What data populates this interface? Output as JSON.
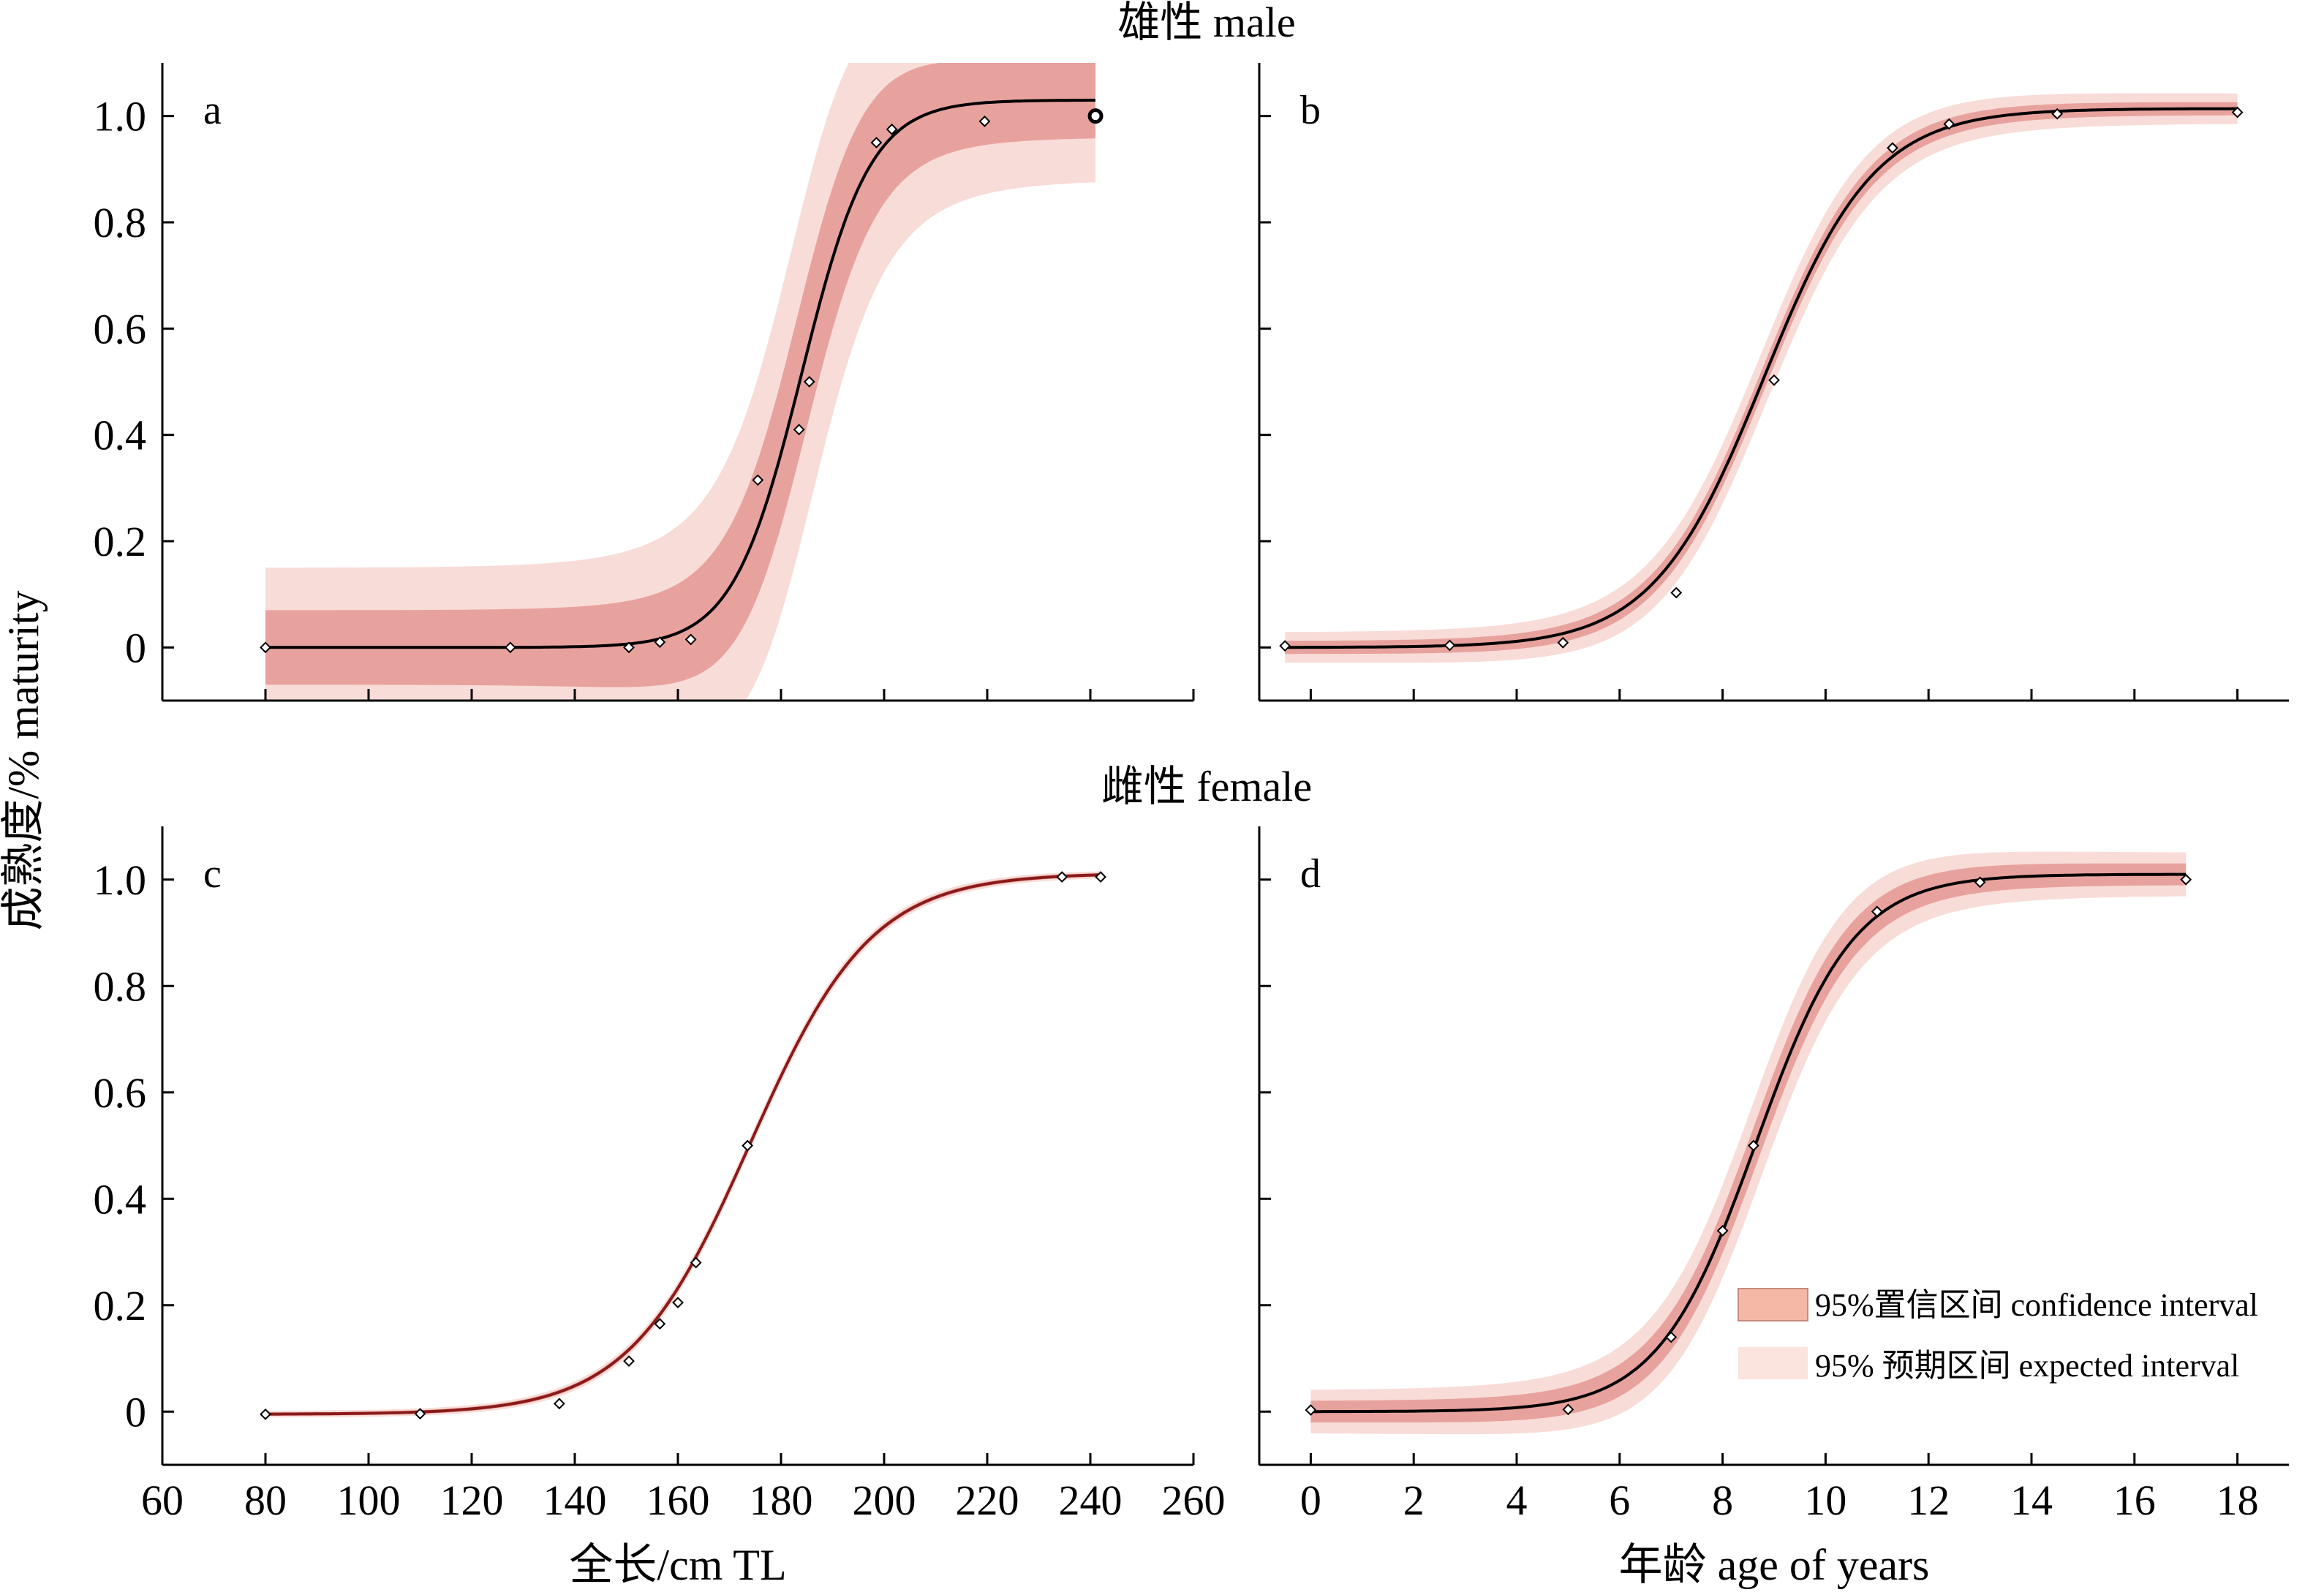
{
  "figure": {
    "section_male": "雄性 male",
    "section_female": "雌性 female",
    "ylabel": "成熟度/% maturity",
    "legend": [
      {
        "label": "95%置信区间 confidence interval",
        "color": "#f3b8a6",
        "border": "#c78a7a"
      },
      {
        "label": "95% 预期区间 expected interval",
        "color": "#fbe3de",
        "border": "#fbe3de"
      }
    ],
    "colors": {
      "ci": "#e8a29e",
      "pi": "#f8dcd8",
      "curve": "#000000",
      "curve_female_length": "#8b1a1a"
    }
  },
  "chart_data": [
    {
      "panel": "a",
      "type": "line",
      "sex": "male",
      "xlabel": "",
      "ylabel": "成熟度/% maturity",
      "xlim": [
        60,
        260
      ],
      "ylim": [
        -0.1,
        1.1
      ],
      "xticks": [
        60,
        80,
        100,
        120,
        140,
        160,
        180,
        200,
        220,
        240,
        260
      ],
      "yticks": [
        0,
        0.2,
        0.4,
        0.6,
        0.8,
        1.0
      ],
      "ytick_labels": [
        "0",
        "0.2",
        "0.4",
        "0.6",
        "0.8",
        "1.0"
      ],
      "show_xtick_labels": false,
      "curve": {
        "x_range": [
          80,
          241
        ],
        "x50": 184,
        "k": 0.15,
        "upper": 1.03
      },
      "ci_halfwidth": [
        0.07,
        0.07
      ],
      "pi_halfwidth": [
        0.15,
        0.16
      ],
      "points": [
        {
          "x": 80,
          "y": 0.0
        },
        {
          "x": 127.5,
          "y": 0.0
        },
        {
          "x": 150.5,
          "y": 0.0
        },
        {
          "x": 156.5,
          "y": 0.01
        },
        {
          "x": 162.5,
          "y": 0.015
        },
        {
          "x": 175.5,
          "y": 0.315
        },
        {
          "x": 183.5,
          "y": 0.41
        },
        {
          "x": 185.5,
          "y": 0.5
        },
        {
          "x": 198.5,
          "y": 0.95
        },
        {
          "x": 201.5,
          "y": 0.975
        },
        {
          "x": 219.5,
          "y": 0.99
        },
        {
          "x": 241,
          "y": 1.0
        }
      ]
    },
    {
      "panel": "b",
      "type": "line",
      "sex": "male",
      "xlabel": "",
      "ylabel": "",
      "xlim": [
        -1,
        19
      ],
      "ylim": [
        -0.1,
        1.1
      ],
      "xticks": [
        0,
        2,
        4,
        6,
        8,
        10,
        12,
        14,
        16,
        18
      ],
      "yticks": [
        0,
        0.2,
        0.4,
        0.6,
        0.8,
        1.0
      ],
      "show_xtick_labels": false,
      "curve": {
        "x_range": [
          -0.5,
          18
        ],
        "x50": 8.8,
        "k": 0.93,
        "upper": 1.014
      },
      "ci_halfwidth": [
        0.012,
        0.012
      ],
      "pi_halfwidth": [
        0.028,
        0.03
      ],
      "points": [
        {
          "x": -0.5,
          "y": 0.003
        },
        {
          "x": 2.7,
          "y": 0.004
        },
        {
          "x": 4.9,
          "y": 0.009
        },
        {
          "x": 7.1,
          "y": 0.103
        },
        {
          "x": 9.0,
          "y": 0.503
        },
        {
          "x": 11.3,
          "y": 0.94
        },
        {
          "x": 12.4,
          "y": 0.985
        },
        {
          "x": 14.5,
          "y": 1.004
        },
        {
          "x": 18.0,
          "y": 1.007
        }
      ]
    },
    {
      "panel": "c",
      "type": "line",
      "sex": "female",
      "xlabel": "全长/cm TL",
      "ylabel": "成熟度/% maturity",
      "xlim": [
        60,
        260
      ],
      "ylim": [
        -0.1,
        1.1
      ],
      "xticks": [
        60,
        80,
        100,
        120,
        140,
        160,
        180,
        200,
        220,
        240,
        260
      ],
      "xtick_labels": [
        "60",
        "80",
        "100",
        "120",
        "140",
        "160",
        "180",
        "200",
        "220",
        "240",
        "260"
      ],
      "yticks": [
        0,
        0.2,
        0.4,
        0.6,
        0.8,
        1.0
      ],
      "ytick_labels": [
        "0",
        "0.2",
        "0.4",
        "0.6",
        "0.8",
        "1.0"
      ],
      "show_xtick_labels": true,
      "curve": {
        "x_range": [
          80,
          242
        ],
        "x50": 174,
        "k": 0.085,
        "upper": 1.012,
        "lower": -0.005
      },
      "ci_halfwidth": [
        0.003,
        0.003
      ],
      "pi_halfwidth": [
        0.006,
        0.006
      ],
      "points": [
        {
          "x": 80,
          "y": -0.005
        },
        {
          "x": 110,
          "y": -0.004
        },
        {
          "x": 137,
          "y": 0.015
        },
        {
          "x": 150.5,
          "y": 0.095
        },
        {
          "x": 156.5,
          "y": 0.165
        },
        {
          "x": 160,
          "y": 0.205
        },
        {
          "x": 163.5,
          "y": 0.28
        },
        {
          "x": 173.5,
          "y": 0.5
        },
        {
          "x": 234.5,
          "y": 1.005
        },
        {
          "x": 242,
          "y": 1.005
        }
      ]
    },
    {
      "panel": "d",
      "type": "line",
      "sex": "female",
      "xlabel": "年龄 age of years",
      "ylabel": "",
      "xlim": [
        -1,
        19
      ],
      "ylim": [
        -0.1,
        1.1
      ],
      "xticks": [
        0,
        2,
        4,
        6,
        8,
        10,
        12,
        14,
        16,
        18
      ],
      "xtick_labels": [
        "0",
        "2",
        "4",
        "6",
        "8",
        "10",
        "12",
        "14",
        "16",
        "18"
      ],
      "yticks": [
        0,
        0.2,
        0.4,
        0.6,
        0.8,
        1.0
      ],
      "show_xtick_labels": true,
      "curve": {
        "x_range": [
          0,
          17
        ],
        "x50": 8.65,
        "k": 1.05,
        "upper": 1.01
      },
      "ci_halfwidth": [
        0.02,
        0.022
      ],
      "pi_halfwidth": [
        0.04,
        0.05
      ],
      "points": [
        {
          "x": 0,
          "y": 0.003
        },
        {
          "x": 5.0,
          "y": 0.004
        },
        {
          "x": 7.0,
          "y": 0.14
        },
        {
          "x": 8.0,
          "y": 0.34
        },
        {
          "x": 8.6,
          "y": 0.5
        },
        {
          "x": 11.0,
          "y": 0.94
        },
        {
          "x": 13.0,
          "y": 0.995
        },
        {
          "x": 17.0,
          "y": 1.0
        }
      ]
    }
  ]
}
